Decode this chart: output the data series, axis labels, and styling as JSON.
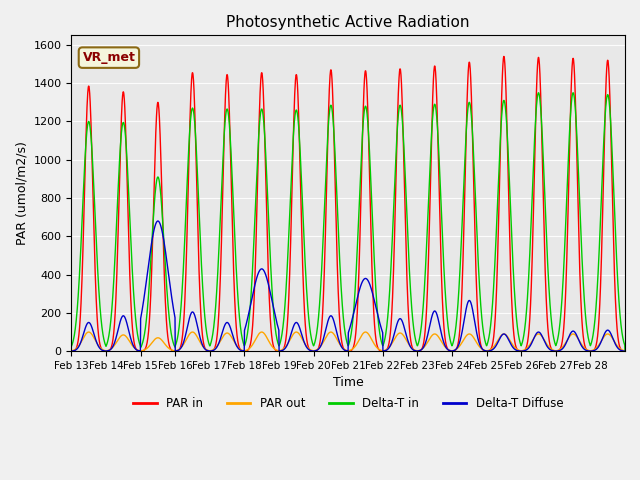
{
  "title": "Photosynthetic Active Radiation",
  "xlabel": "Time",
  "ylabel": "PAR (umol/m2/s)",
  "ylim": [
    0,
    1650
  ],
  "watermark_text": "VR_met",
  "background_color": "#e8e8e8",
  "fig_background_color": "#f0f0f0",
  "series_colors": {
    "par_in": "#ff0000",
    "par_out": "#ffa500",
    "delta_t_in": "#00cc00",
    "delta_t_diffuse": "#0000cc"
  },
  "legend_labels": [
    "PAR in",
    "PAR out",
    "Delta-T in",
    "Delta-T Diffuse"
  ],
  "x_tick_labels": [
    "Feb 13",
    "Feb 14",
    "Feb 15",
    "Feb 16",
    "Feb 17",
    "Feb 18",
    "Feb 19",
    "Feb 20",
    "Feb 21",
    "Feb 22",
    "Feb 23",
    "Feb 24",
    "Feb 25",
    "Feb 26",
    "Feb 27",
    "Feb 28"
  ],
  "day_peaks_par_in": [
    1385,
    1355,
    1300,
    1455,
    1445,
    1455,
    1445,
    1470,
    1465,
    1475,
    1490,
    1510,
    1540,
    1535,
    1530,
    1520
  ],
  "day_peaks_par_out": [
    100,
    85,
    70,
    100,
    95,
    100,
    100,
    100,
    100,
    95,
    90,
    90,
    90,
    90,
    90,
    90
  ],
  "day_peaks_delta_t_in": [
    1200,
    1195,
    910,
    1270,
    1265,
    1265,
    1260,
    1285,
    1280,
    1285,
    1290,
    1300,
    1310,
    1350,
    1350,
    1340
  ],
  "day_peaks_delta_t_diffuse": [
    150,
    185,
    680,
    205,
    150,
    430,
    150,
    185,
    380,
    170,
    210,
    265,
    90,
    100,
    105,
    110
  ],
  "total_days": 16
}
